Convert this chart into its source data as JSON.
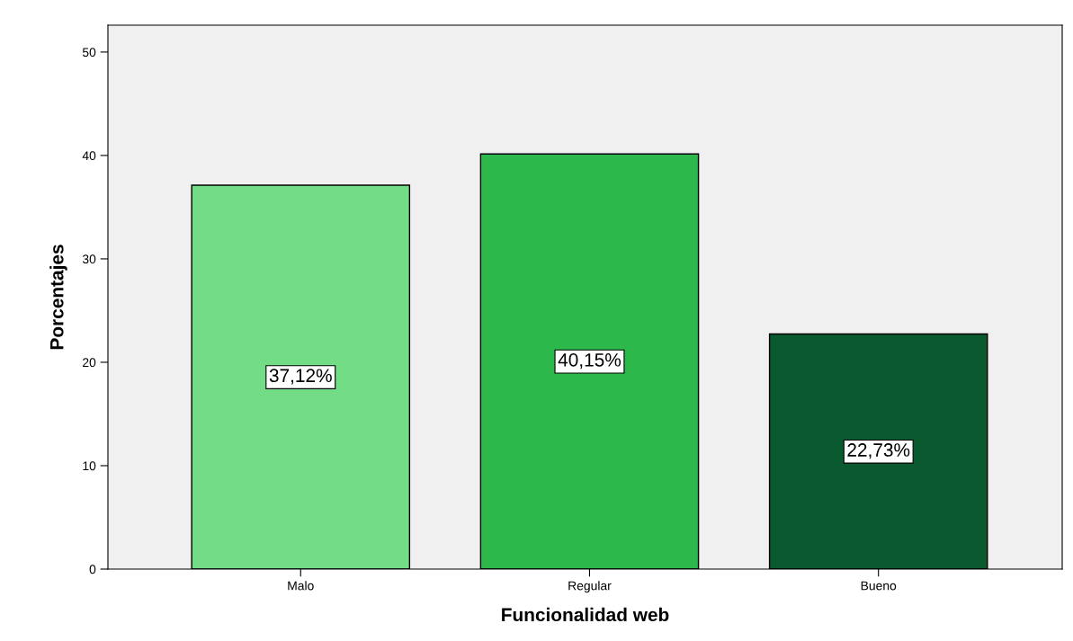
{
  "chart_data": {
    "type": "bar",
    "xlabel": "Funcionalidad web",
    "ylabel": "Porcentajes",
    "categories": [
      "Malo",
      "Regular",
      "Bueno"
    ],
    "values": [
      37.12,
      40.15,
      22.73
    ],
    "colors": [
      "#72dc86",
      "#2db84b",
      "#0b5a2f"
    ],
    "value_labels": [
      "37,12%",
      "40,15%",
      "22,73%"
    ],
    "ylim": [
      0,
      52.6
    ],
    "yticks": [
      0,
      10,
      20,
      30,
      40,
      50
    ],
    "grid": false,
    "legend": false
  }
}
